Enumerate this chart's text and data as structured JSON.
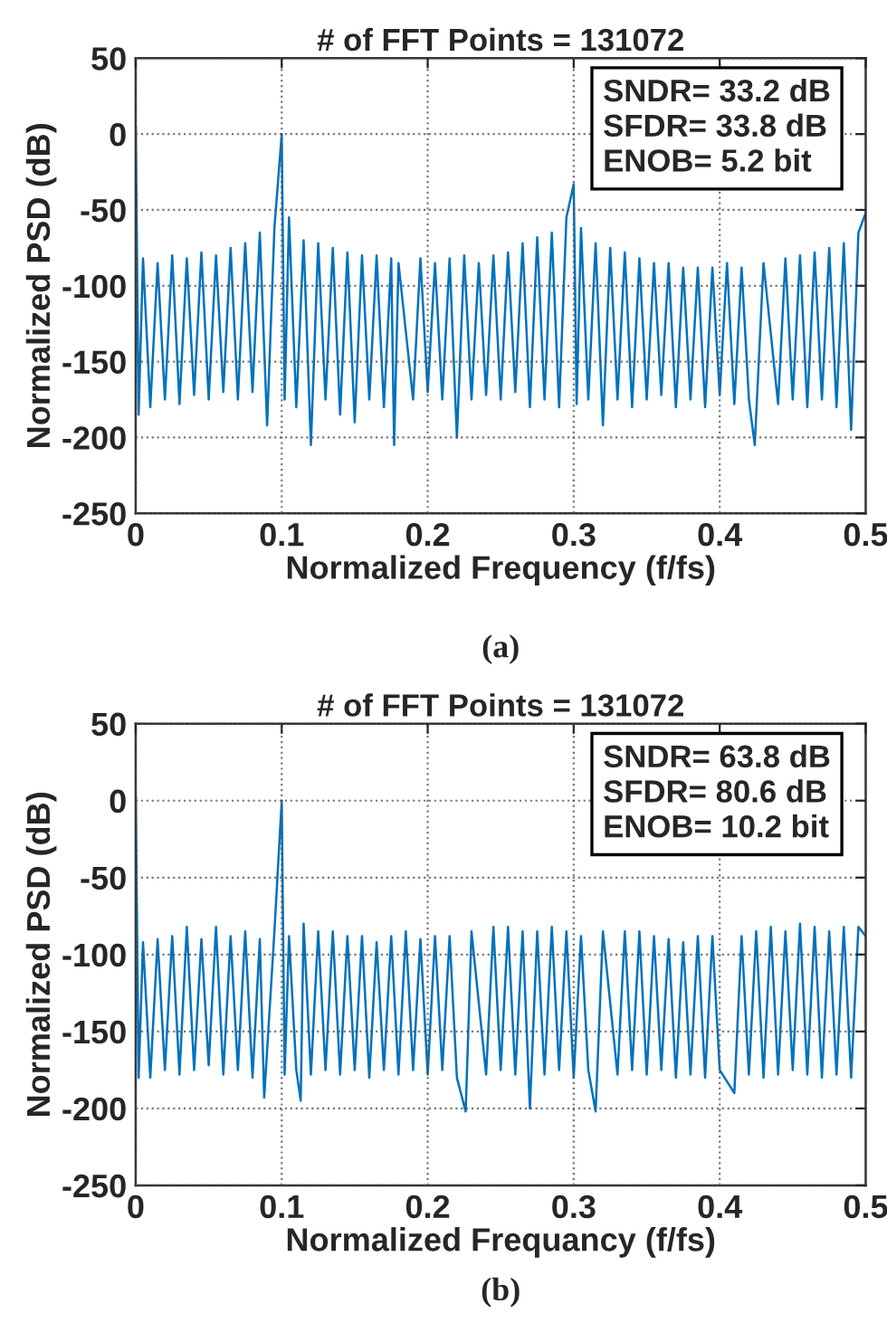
{
  "chart_data": [
    {
      "type": "line",
      "title": "# of FFT Points = 131072",
      "xlabel": "Normalized Frequency (f/fs)",
      "ylabel": "Normalized PSD (dB)",
      "annotations": [
        "SNDR= 33.2 dB\nSFDR= 33.8 dB\nENOB= 5.2 bit",
        "(a)"
      ],
      "xlim": [
        0,
        0.5
      ],
      "xticks": [
        0,
        0.1,
        0.2,
        0.3,
        0.4,
        0.5
      ],
      "ylim": [
        -250,
        50
      ],
      "yticks": [
        -250,
        -200,
        -150,
        -100,
        -50,
        0,
        50
      ],
      "grid": true,
      "series": [
        {
          "color": "#0072bd",
          "x": [
            0,
            0.002,
            0.005,
            0.01,
            0.015,
            0.02,
            0.025,
            0.03,
            0.035,
            0.04,
            0.045,
            0.05,
            0.055,
            0.06,
            0.065,
            0.07,
            0.075,
            0.08,
            0.085,
            0.09,
            0.095,
            0.1,
            0.102,
            0.105,
            0.11,
            0.115,
            0.12,
            0.125,
            0.13,
            0.135,
            0.14,
            0.145,
            0.15,
            0.155,
            0.16,
            0.165,
            0.17,
            0.175,
            0.177,
            0.18,
            0.19,
            0.195,
            0.2,
            0.205,
            0.21,
            0.215,
            0.22,
            0.225,
            0.23,
            0.235,
            0.24,
            0.245,
            0.25,
            0.255,
            0.26,
            0.265,
            0.27,
            0.275,
            0.28,
            0.285,
            0.29,
            0.295,
            0.3,
            0.302,
            0.305,
            0.31,
            0.315,
            0.32,
            0.325,
            0.33,
            0.335,
            0.34,
            0.345,
            0.35,
            0.355,
            0.36,
            0.365,
            0.37,
            0.375,
            0.38,
            0.385,
            0.39,
            0.395,
            0.4,
            0.405,
            0.41,
            0.415,
            0.42,
            0.424,
            0.43,
            0.44,
            0.445,
            0.45,
            0.455,
            0.46,
            0.465,
            0.47,
            0.475,
            0.48,
            0.485,
            0.49,
            0.495,
            0.5
          ],
          "values": [
            5,
            -185,
            -82,
            -180,
            -85,
            -175,
            -80,
            -178,
            -82,
            -172,
            -78,
            -175,
            -80,
            -170,
            -75,
            -175,
            -72,
            -170,
            -65,
            -192,
            -62,
            0,
            -175,
            -55,
            -180,
            -70,
            -205,
            -72,
            -175,
            -75,
            -185,
            -78,
            -190,
            -80,
            -175,
            -80,
            -180,
            -82,
            -205,
            -85,
            -175,
            -82,
            -170,
            -85,
            -175,
            -82,
            -200,
            -80,
            -175,
            -85,
            -172,
            -80,
            -175,
            -78,
            -170,
            -72,
            -180,
            -68,
            -175,
            -65,
            -180,
            -55,
            -33,
            -178,
            -62,
            -175,
            -72,
            -192,
            -75,
            -175,
            -78,
            -180,
            -82,
            -175,
            -85,
            -172,
            -85,
            -180,
            -88,
            -175,
            -88,
            -180,
            -88,
            -172,
            -85,
            -178,
            -88,
            -175,
            -205,
            -85,
            -178,
            -82,
            -175,
            -80,
            -180,
            -78,
            -175,
            -75,
            -180,
            -72,
            -195,
            -65,
            -52
          ]
        }
      ]
    },
    {
      "type": "line",
      "title": "# of FFT Points = 131072",
      "xlabel": "Normalized Frequancy (f/fs)",
      "ylabel": "Normalized PSD (dB)",
      "annotations": [
        "SNDR= 63.8 dB\nSFDR= 80.6 dB\nENOB= 10.2 bit",
        "(b)"
      ],
      "xlim": [
        0,
        0.5
      ],
      "xticks": [
        0,
        0.1,
        0.2,
        0.3,
        0.4,
        0.5
      ],
      "ylim": [
        -250,
        50
      ],
      "yticks": [
        -250,
        -200,
        -150,
        -100,
        -50,
        0,
        50
      ],
      "grid": true,
      "series": [
        {
          "color": "#0072bd",
          "x": [
            0,
            0.002,
            0.005,
            0.01,
            0.015,
            0.02,
            0.025,
            0.03,
            0.035,
            0.04,
            0.045,
            0.05,
            0.055,
            0.06,
            0.065,
            0.07,
            0.075,
            0.08,
            0.085,
            0.088,
            0.095,
            0.1,
            0.102,
            0.105,
            0.11,
            0.113,
            0.115,
            0.12,
            0.125,
            0.13,
            0.135,
            0.14,
            0.145,
            0.15,
            0.155,
            0.16,
            0.165,
            0.17,
            0.175,
            0.18,
            0.185,
            0.19,
            0.195,
            0.2,
            0.205,
            0.21,
            0.215,
            0.22,
            0.226,
            0.23,
            0.24,
            0.245,
            0.25,
            0.255,
            0.26,
            0.265,
            0.27,
            0.275,
            0.28,
            0.285,
            0.29,
            0.295,
            0.3,
            0.305,
            0.31,
            0.315,
            0.32,
            0.33,
            0.335,
            0.34,
            0.345,
            0.35,
            0.355,
            0.36,
            0.365,
            0.37,
            0.375,
            0.38,
            0.385,
            0.39,
            0.395,
            0.4,
            0.41,
            0.415,
            0.42,
            0.425,
            0.43,
            0.435,
            0.44,
            0.445,
            0.45,
            0.455,
            0.46,
            0.465,
            0.47,
            0.475,
            0.48,
            0.485,
            0.49,
            0.495,
            0.5
          ],
          "values": [
            3,
            -180,
            -92,
            -180,
            -90,
            -175,
            -88,
            -178,
            -82,
            -175,
            -90,
            -172,
            -82,
            -178,
            -88,
            -175,
            -85,
            -180,
            -90,
            -193,
            -85,
            0,
            -178,
            -88,
            -175,
            -195,
            -80,
            -178,
            -85,
            -175,
            -85,
            -178,
            -88,
            -175,
            -88,
            -180,
            -92,
            -175,
            -88,
            -178,
            -85,
            -175,
            -90,
            -178,
            -88,
            -175,
            -88,
            -180,
            -202,
            -85,
            -178,
            -82,
            -175,
            -82,
            -178,
            -85,
            -200,
            -85,
            -178,
            -82,
            -175,
            -85,
            -180,
            -88,
            -175,
            -202,
            -85,
            -178,
            -85,
            -175,
            -85,
            -178,
            -88,
            -175,
            -90,
            -180,
            -92,
            -178,
            -88,
            -180,
            -88,
            -175,
            -190,
            -88,
            -178,
            -85,
            -180,
            -82,
            -178,
            -85,
            -175,
            -80,
            -178,
            -82,
            -180,
            -85,
            -178,
            -82,
            -180,
            -82,
            -88
          ]
        }
      ]
    }
  ]
}
